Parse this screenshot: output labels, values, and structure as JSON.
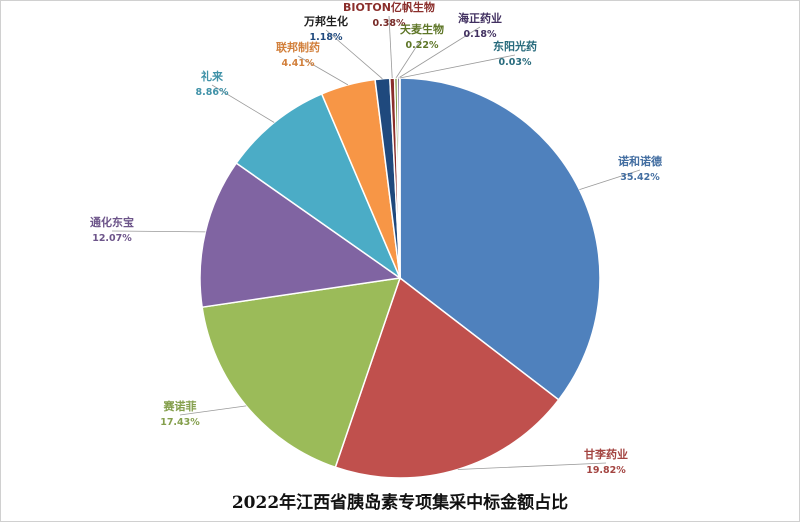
{
  "chart_data": {
    "type": "pie",
    "title": "2022年江西省胰岛素专项集采中标金额占比",
    "slices": [
      {
        "name": "诺和诺德",
        "value": 35.42,
        "label": "35.42%",
        "color": "#4F81BD"
      },
      {
        "name": "甘李药业",
        "value": 19.82,
        "label": "19.82%",
        "color": "#C0504D"
      },
      {
        "name": "赛诺菲",
        "value": 17.43,
        "label": "17.43%",
        "color": "#9BBB59"
      },
      {
        "name": "通化东宝",
        "value": 12.07,
        "label": "12.07%",
        "color": "#8064A2"
      },
      {
        "name": "礼来",
        "value": 8.86,
        "label": "8.86%",
        "color": "#4BACC6"
      },
      {
        "name": "联邦制药",
        "value": 4.41,
        "label": "4.41%",
        "color": "#F79646"
      },
      {
        "name": "万邦生化",
        "value": 1.18,
        "label": "1.18%",
        "color": "#1F497D"
      },
      {
        "name": "BIOTON亿帆生物",
        "value": 0.38,
        "label": "0.38%",
        "color": "#8B2F2C"
      },
      {
        "name": "天麦生物",
        "value": 0.22,
        "label": "0.22%",
        "color": "#6E8B2E"
      },
      {
        "name": "海正药业",
        "value": 0.18,
        "label": "0.18%",
        "color": "#4E3A72"
      },
      {
        "name": "东阳光药",
        "value": 0.03,
        "label": "0.03%",
        "color": "#2F7E93"
      }
    ],
    "legend": "none",
    "data_labels": "outside with leader lines"
  }
}
